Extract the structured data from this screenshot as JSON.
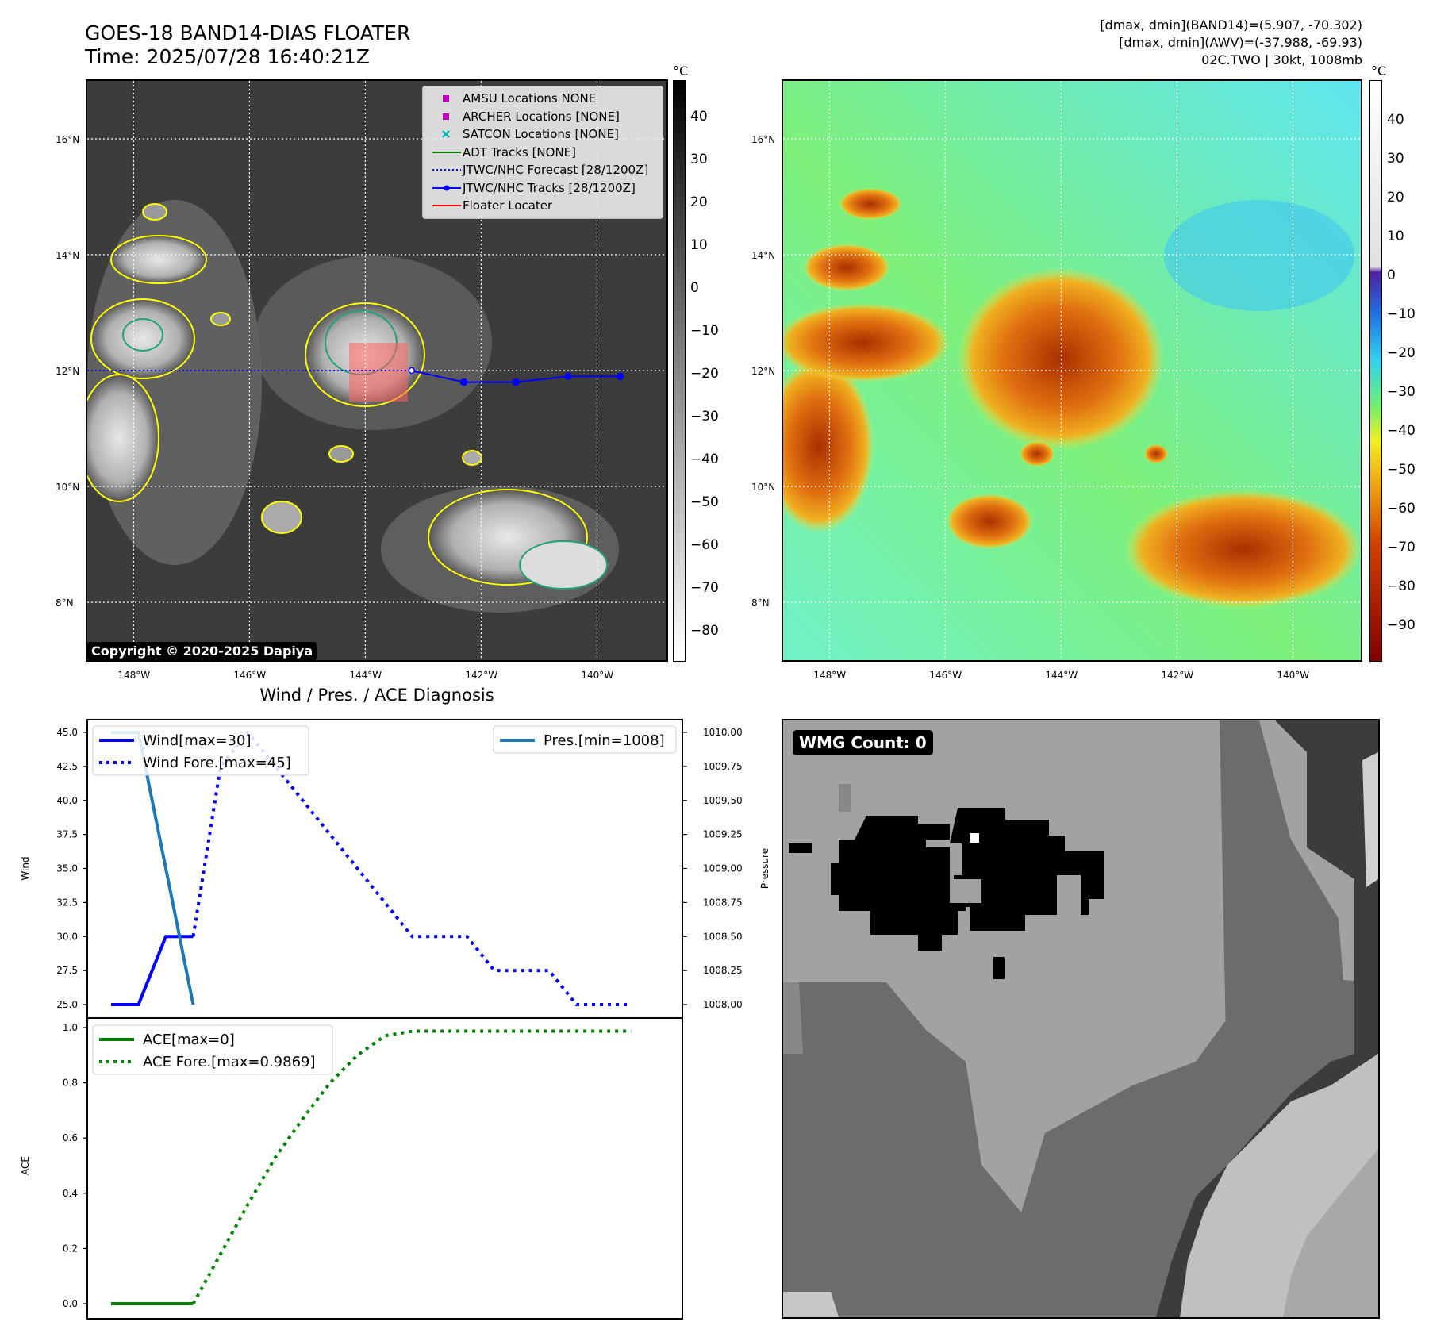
{
  "header": {
    "title_line1": "GOES-18 BAND14-DIAS FLOATER",
    "title_line2": "Time: 2025/07/28 16:40:21Z",
    "info_line1": "[dmax, dmin](BAND14)=(5.907, -70.302)",
    "info_line2": "[dmax, dmin](AWV)=(-37.988, -69.93)",
    "info_line3": "02C.TWO | 30kt, 1008mb"
  },
  "map": {
    "lat_labels": [
      "16°N",
      "14°N",
      "12°N",
      "10°N",
      "8°N"
    ],
    "lon_labels": [
      "148°W",
      "146°W",
      "144°W",
      "142°W",
      "140°W"
    ],
    "copyright": "Copyright © 2020-2025 Dapiya",
    "legend": [
      {
        "label": "AMSU Locations NONE",
        "symbol": "square",
        "color": "#c000c0"
      },
      {
        "label": "ARCHER Locations [NONE]",
        "symbol": "square",
        "color": "#c000c0"
      },
      {
        "label": "SATCON Locations [NONE]",
        "symbol": "x",
        "color": "#00b0b0"
      },
      {
        "label": "ADT Tracks [NONE]",
        "symbol": "line",
        "color": "#008000"
      },
      {
        "label": "JTWC/NHC Forecast [28/1200Z]",
        "symbol": "dotted",
        "color": "#0000ff"
      },
      {
        "label": "JTWC/NHC Tracks [28/1200Z]",
        "symbol": "line-dot",
        "color": "#0000ff"
      },
      {
        "label": "Floater Locater",
        "symbol": "line",
        "color": "#ff0000"
      }
    ],
    "forecast_track": {
      "lon": [
        -143.2,
        -142.3,
        -141.4,
        -140.5,
        -139.6
      ],
      "lat": [
        12.0,
        11.8,
        11.8,
        11.9,
        11.9
      ]
    },
    "past_track_lat": 12.0
  },
  "colorbars": {
    "unit": "°C",
    "gray_ticks": [
      "40",
      "30",
      "20",
      "10",
      "0",
      "−10",
      "−20",
      "−30",
      "−40",
      "−50",
      "−60",
      "−70",
      "−80"
    ],
    "color_ticks": [
      "40",
      "30",
      "20",
      "10",
      "0",
      "−10",
      "−20",
      "−30",
      "−40",
      "−50",
      "−60",
      "−70",
      "−80",
      "−90"
    ]
  },
  "wmg": {
    "label": "WMG Count: 0"
  },
  "chart_data": [
    {
      "type": "line",
      "title": "Wind / Pres. / ACE Diagnosis",
      "ylabel": "Wind",
      "ylabel_right": "Pressure",
      "ylim": [
        25.0,
        45.0
      ],
      "ylim_right": [
        1008.0,
        1010.0
      ],
      "yticks": [
        "45.0",
        "42.5",
        "40.0",
        "37.5",
        "35.0",
        "32.5",
        "30.0",
        "27.5",
        "25.0"
      ],
      "yticks_right": [
        "1010.00",
        "1009.75",
        "1009.50",
        "1009.25",
        "1009.00",
        "1008.75",
        "1008.50",
        "1008.25",
        "1008.00"
      ],
      "series": [
        {
          "name": "Wind[max=30]",
          "color": "#0000ff",
          "style": "solid",
          "x": [
            0,
            1,
            2,
            3
          ],
          "values": [
            25,
            25,
            30,
            30
          ]
        },
        {
          "name": "Wind Fore.[max=45]",
          "color": "#0000ff",
          "style": "dotted",
          "x": [
            3,
            4,
            5,
            6,
            7,
            8,
            9,
            10,
            11,
            12,
            13,
            14,
            15,
            16,
            17,
            18,
            19
          ],
          "values": [
            30,
            42.5,
            45,
            42.5,
            40,
            37.5,
            35,
            32.5,
            30,
            30,
            30,
            27.5,
            27.5,
            27.5,
            25,
            25,
            25
          ]
        },
        {
          "name": "Pres.[min=1008]",
          "color": "#1f77b4",
          "style": "solid",
          "axis": "right",
          "x": [
            0,
            1,
            2,
            3
          ],
          "values": [
            1010,
            1010,
            1009,
            1008
          ]
        }
      ]
    },
    {
      "type": "line",
      "ylabel": "ACE",
      "ylim": [
        0.0,
        1.0
      ],
      "yticks": [
        "1.0",
        "0.8",
        "0.6",
        "0.4",
        "0.2",
        "0.0"
      ],
      "series": [
        {
          "name": "ACE[max=0]",
          "color": "#008000",
          "style": "solid",
          "x": [
            0,
            1,
            2,
            3
          ],
          "values": [
            0,
            0,
            0,
            0
          ]
        },
        {
          "name": "ACE Fore.[max=0.9869]",
          "color": "#008000",
          "style": "dotted",
          "x": [
            3,
            4,
            5,
            6,
            7,
            8,
            9,
            10,
            11,
            12,
            13,
            14,
            15,
            16,
            17,
            18,
            19
          ],
          "values": [
            0,
            0.18,
            0.36,
            0.53,
            0.67,
            0.8,
            0.9,
            0.97,
            0.9869,
            0.9869,
            0.9869,
            0.9869,
            0.9869,
            0.9869,
            0.9869,
            0.9869,
            0.9869
          ]
        }
      ]
    }
  ]
}
